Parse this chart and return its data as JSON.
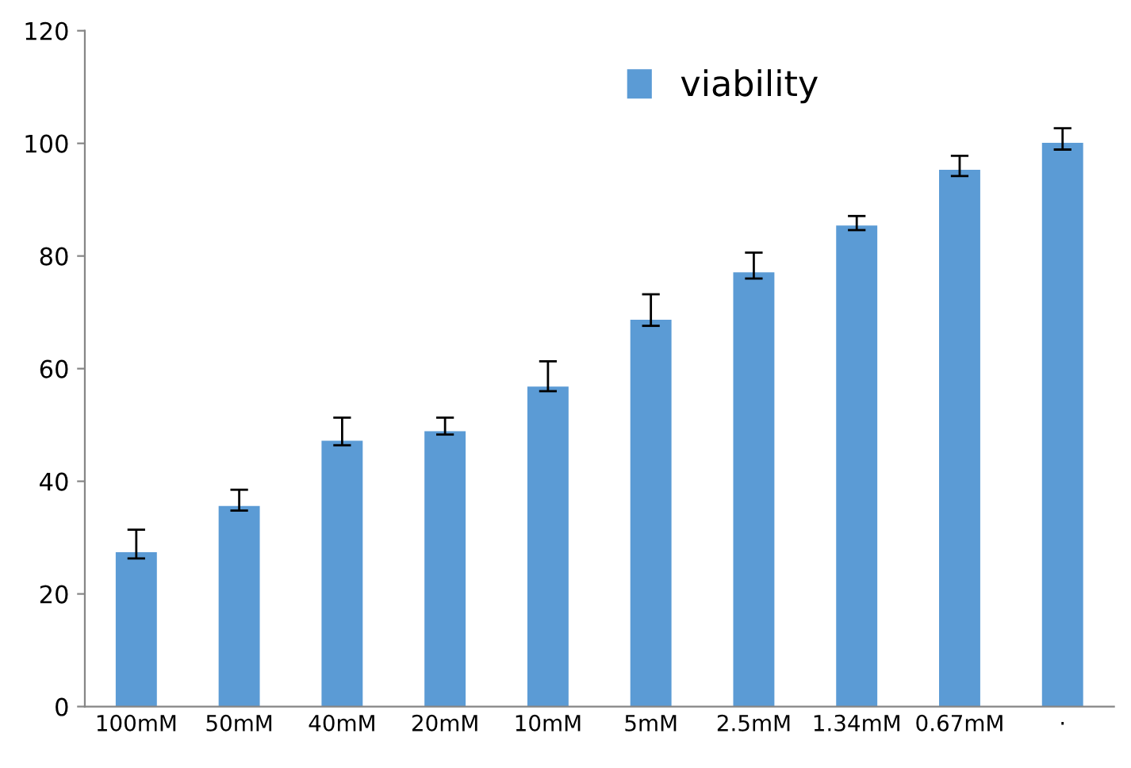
{
  "chart_data": {
    "type": "bar",
    "categories": [
      "100mM",
      "50mM",
      "40mM",
      "20mM",
      "10mM",
      "5mM",
      "2.5mM",
      "1.34mM",
      "0.67mM",
      "·"
    ],
    "series": [
      {
        "name": "viability",
        "color": "#5b9bd5",
        "values": [
          27.4,
          35.6,
          47.2,
          48.9,
          56.8,
          68.7,
          77.1,
          85.4,
          95.3,
          100.1
        ],
        "errors": [
          [
            26.3,
            31.4
          ],
          [
            34.8,
            38.5
          ],
          [
            46.4,
            51.3
          ],
          [
            48.3,
            51.3
          ],
          [
            56.0,
            61.3
          ],
          [
            67.6,
            73.2
          ],
          [
            76.0,
            80.6
          ],
          [
            84.6,
            87.1
          ],
          [
            94.2,
            97.8
          ],
          [
            98.9,
            102.7
          ]
        ]
      }
    ],
    "ylim": [
      0,
      120
    ],
    "yticks": [
      0,
      20,
      40,
      60,
      80,
      100,
      120
    ],
    "grid": false,
    "legend": "top"
  }
}
